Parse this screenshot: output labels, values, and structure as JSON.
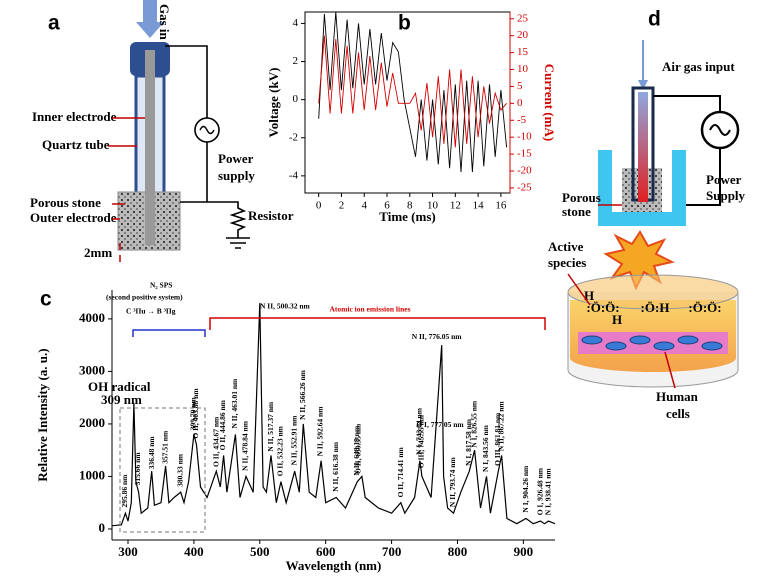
{
  "chart_data": [
    {
      "type": "line",
      "label": "b",
      "xlabel": "Time (ms)",
      "ylabel": "Voltage (kV)",
      "y2label": "Current (mA)",
      "x": [
        0,
        0.5,
        1,
        1.5,
        2,
        2.5,
        3,
        3.5,
        4,
        4.5,
        5,
        5.5,
        6,
        6.5,
        7,
        7.5,
        8,
        8.5,
        9,
        9.5,
        10,
        10.5,
        11,
        11.5,
        12,
        12.5,
        13,
        13.5,
        14,
        14.5,
        15,
        15.5,
        16,
        16.5
      ],
      "series": [
        {
          "color": "#000000",
          "values": [
            -1,
            4.5,
            0.5,
            4.6,
            0.5,
            4.2,
            0.6,
            4,
            0.8,
            3.7,
            0.8,
            3.5,
            1,
            3,
            2.5,
            0,
            -1.5,
            -3,
            0,
            -3.2,
            0,
            -3.4,
            0.5,
            -3.6,
            0.8,
            -3.8,
            1,
            -3.8,
            1,
            -3.5,
            0.8,
            -3,
            0.5,
            -2.5
          ]
        },
        {
          "color": "#d40000",
          "axis": "y2",
          "values": [
            0,
            20,
            -3,
            19,
            -3,
            17,
            -3,
            15,
            -2,
            14,
            -2,
            12,
            -1,
            9,
            0,
            0,
            0,
            3,
            -8,
            6,
            -10,
            8,
            -12,
            10,
            -13,
            10,
            -12,
            8,
            -10,
            5,
            -6,
            3,
            -2,
            0
          ]
        }
      ],
      "xlim": [
        -1.2,
        16.8
      ],
      "xticks": [
        0,
        2,
        4,
        6,
        8,
        10,
        12,
        14,
        16
      ],
      "ylim": [
        -4.9,
        4.6
      ],
      "yticks": [
        -4,
        -2,
        0,
        2,
        4
      ],
      "y2lim": [
        -26.5,
        27
      ],
      "y2ticks": [
        -25,
        -20,
        -15,
        -10,
        -5,
        0,
        5,
        10,
        15,
        20,
        25
      ]
    },
    {
      "type": "line",
      "label": "c",
      "xlabel": "Wavelength (nm)",
      "ylabel": "Relative Intensity (a. u.)",
      "color": "#000000",
      "x": [
        275,
        290,
        296,
        300,
        305,
        309,
        312,
        316,
        320,
        330,
        336,
        340,
        350,
        357,
        362,
        370,
        380,
        385,
        392,
        400,
        404,
        410,
        420,
        434,
        440,
        445,
        450,
        463,
        470,
        479,
        490,
        500,
        505,
        510,
        517,
        525,
        532,
        540,
        553,
        560,
        566,
        575,
        585,
        593,
        600,
        616,
        630,
        648,
        655,
        660,
        680,
        700,
        714,
        720,
        735,
        743,
        746,
        760,
        776,
        779,
        785,
        794,
        805,
        818,
        826,
        835,
        844,
        850,
        862,
        867,
        875,
        890,
        904,
        915,
        926,
        932,
        938,
        948
      ],
      "values": [
        60,
        80,
        300,
        150,
        500,
        2400,
        900,
        700,
        300,
        400,
        1100,
        450,
        500,
        1200,
        500,
        600,
        700,
        500,
        900,
        1800,
        1600,
        800,
        600,
        1100,
        800,
        1400,
        700,
        1800,
        600,
        1000,
        700,
        4300,
        800,
        700,
        1400,
        500,
        900,
        500,
        1100,
        700,
        2000,
        700,
        600,
        1300,
        500,
        600,
        400,
        900,
        1000,
        600,
        400,
        300,
        500,
        300,
        600,
        1300,
        1000,
        600,
        3500,
        1000,
        400,
        300,
        700,
        1100,
        1500,
        400,
        1000,
        300,
        1100,
        1400,
        200,
        100,
        200,
        100,
        150,
        100,
        150,
        100
      ],
      "xlim": [
        275.7,
        948
      ],
      "xticks": [
        300,
        400,
        500,
        600,
        700,
        800,
        900
      ],
      "ylim": [
        -210,
        4550
      ],
      "yticks": [
        0,
        1000,
        2000,
        3000,
        4000
      ],
      "annotations": [
        {
          "text": "295.86 nm",
          "x": 295.86
        },
        {
          "text": "315.66 nm",
          "x": 315.66
        },
        {
          "text": "336.48 nm",
          "x": 336.48
        },
        {
          "text": "357.51 nm",
          "x": 357.51
        },
        {
          "text": "380.33 nm",
          "x": 380.33
        },
        {
          "text": "399.70 nm",
          "x": 399.7
        },
        {
          "text": "O II, 403.88 nm",
          "x": 403.88
        },
        {
          "text": "O II, 434.67 nm",
          "x": 434.67
        },
        {
          "text": "O II, 444.86 nm",
          "x": 444.86
        },
        {
          "text": "N II, 463.01 nm",
          "x": 463.01
        },
        {
          "text": "N II, 478.84 nm",
          "x": 478.84
        },
        {
          "text": "N II, 500.32 nm",
          "x": 500.32
        },
        {
          "text": "N II, 517.37 nm",
          "x": 517.37
        },
        {
          "text": "O II, 532.23 nm",
          "x": 532.23
        },
        {
          "text": "N II, 552.91 nm",
          "x": 552.91
        },
        {
          "text": "N II, 566.26 nm",
          "x": 566.26
        },
        {
          "text": "N II, 592.64 nm",
          "x": 592.64
        },
        {
          "text": "N II, 616.38 nm",
          "x": 616.38
        },
        {
          "text": "N II, 648.19 nm",
          "x": 648.19
        },
        {
          "text": "O II, 650.35 nm",
          "x": 650.35
        },
        {
          "text": "O II, 714.41 nm",
          "x": 714.41
        },
        {
          "text": "N I, 743.04 nm",
          "x": 743.04
        },
        {
          "text": "O III, 745.55 nm",
          "x": 745.55
        },
        {
          "text": "N II, 776.05 nm",
          "x": 776.05
        },
        {
          "text": "O I, 777.05 nm",
          "x": 777.05
        },
        {
          "text": "N II, 793.74 nm",
          "x": 793.74
        },
        {
          "text": "N I, 817.58 nm",
          "x": 817.58
        },
        {
          "text": "N I, 826.55 nm",
          "x": 826.55
        },
        {
          "text": "N I, 843.56 nm",
          "x": 843.56
        },
        {
          "text": "O III, 861.81 nm",
          "x": 861.81
        },
        {
          "text": "N II, 867.22 nm",
          "x": 867.22
        },
        {
          "text": "N I, 904.26 nm",
          "x": 904.26
        },
        {
          "text": "O I, 926.48 nm",
          "x": 926.48
        },
        {
          "text": "N I, 938.41 nm",
          "x": 938.41
        }
      ],
      "texts": {
        "oh": "OH radical",
        "oh_nm": "309 nm",
        "sps": "N₂ SPS",
        "sps_sub": "(second positive system)",
        "sps_transition": "C ³Πu → B ³Πg",
        "atomic": "Atomic ion emission lines"
      }
    }
  ],
  "panel_a": {
    "label": "a",
    "gas_in": "Gas in",
    "inner_electrode": "Inner electrode",
    "quartz_tube": "Quartz tube",
    "power_supply": [
      "Power",
      "supply"
    ],
    "porous_stone": "Porous stone",
    "outer_electrode": "Outer electrode",
    "resistor": "Resistor",
    "gap": "2mm"
  },
  "panel_d": {
    "label": "d",
    "air_gas_input": "Air gas input",
    "power_supply": [
      "Power",
      "Supply"
    ],
    "porous_stone": [
      "Porous",
      "stone"
    ],
    "active_species": [
      "Active",
      "species"
    ],
    "human_cells": [
      "Human",
      "cells"
    ],
    "molecules": [
      "H",
      ":Ö:Ö:",
      "H",
      ":Ö:H",
      ":Ö:Ö:"
    ]
  }
}
